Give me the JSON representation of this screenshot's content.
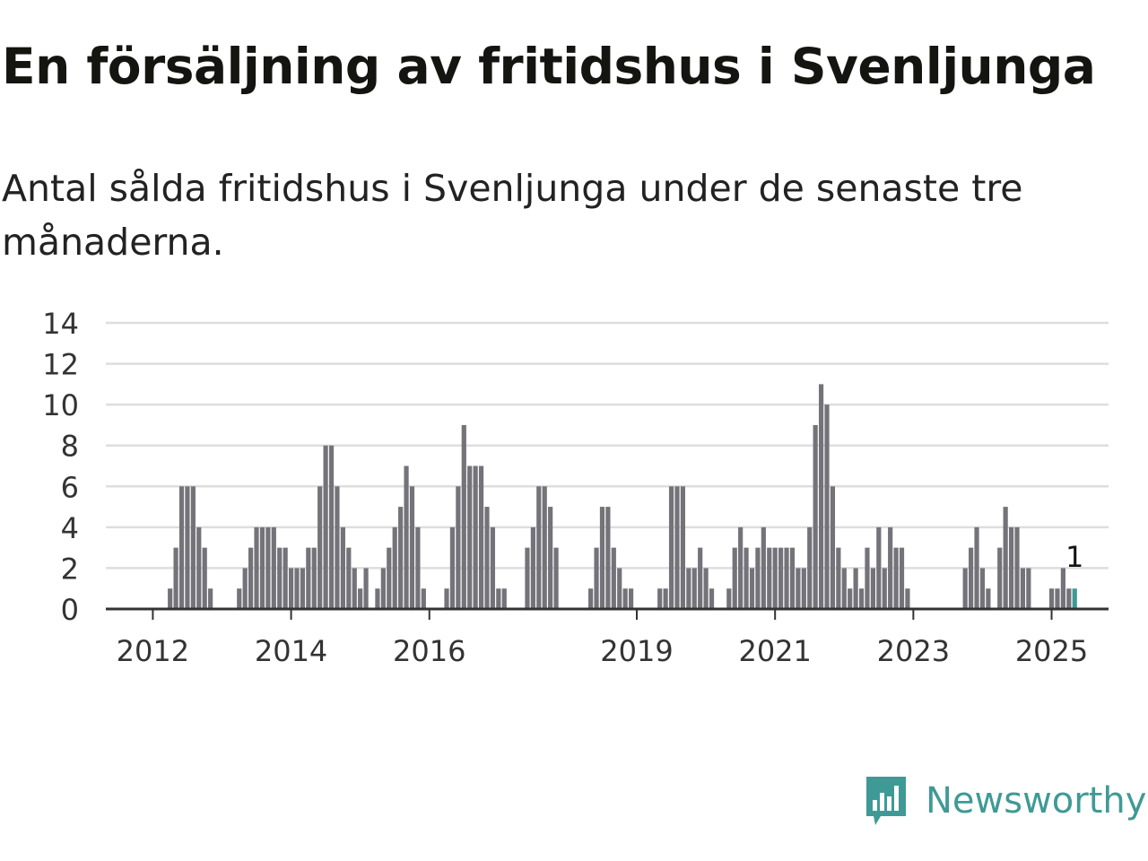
{
  "title": "En försäljning av fritidshus i Svenljunga",
  "subtitle": "Antal sålda fritidshus i Svenljunga under de senaste tre månaderna.",
  "brand": {
    "name": "Newsworthy",
    "icon": "newsworthy-logo-icon",
    "color": "#3f9a95"
  },
  "chart_data": {
    "type": "bar",
    "title": "En försäljning av fritidshus i Svenljunga",
    "xlabel": "",
    "ylabel": "",
    "ylim": [
      0,
      14
    ],
    "yticks": [
      "0",
      "2",
      "4",
      "6",
      "8",
      "10",
      "12",
      "14"
    ],
    "xticks": [
      {
        "label": "2012",
        "month": "2012-01"
      },
      {
        "label": "2014",
        "month": "2014-01"
      },
      {
        "label": "2016",
        "month": "2016-01"
      },
      {
        "label": "2019",
        "month": "2019-01"
      },
      {
        "label": "2021",
        "month": "2021-01"
      },
      {
        "label": "2023",
        "month": "2023-01"
      },
      {
        "label": "2025",
        "month": "2025-01"
      }
    ],
    "grid": true,
    "bar_color": "#74737a",
    "highlight_color": "#3f9a95",
    "highlight_label": "1",
    "start_month": "2011-05",
    "values": [
      0,
      0,
      0,
      0,
      0,
      0,
      0,
      0,
      0,
      0,
      0,
      1,
      3,
      6,
      6,
      6,
      4,
      3,
      1,
      0,
      0,
      0,
      0,
      1,
      2,
      3,
      4,
      4,
      4,
      4,
      3,
      3,
      2,
      2,
      2,
      3,
      3,
      6,
      8,
      8,
      6,
      4,
      3,
      2,
      1,
      2,
      0,
      1,
      2,
      3,
      4,
      5,
      7,
      6,
      4,
      1,
      0,
      0,
      0,
      1,
      4,
      6,
      9,
      7,
      7,
      7,
      5,
      4,
      1,
      1,
      0,
      0,
      0,
      3,
      4,
      6,
      6,
      5,
      3,
      0,
      0,
      0,
      0,
      0,
      1,
      3,
      5,
      5,
      3,
      2,
      1,
      1,
      0,
      0,
      0,
      0,
      1,
      1,
      6,
      6,
      6,
      2,
      2,
      3,
      2,
      1,
      0,
      0,
      1,
      3,
      4,
      3,
      2,
      3,
      4,
      3,
      3,
      3,
      3,
      3,
      2,
      2,
      4,
      9,
      11,
      10,
      6,
      3,
      2,
      1,
      2,
      1,
      3,
      2,
      4,
      2,
      4,
      3,
      3,
      1,
      0,
      0,
      0,
      0,
      0,
      0,
      0,
      0,
      0,
      2,
      3,
      4,
      2,
      1,
      0,
      3,
      5,
      4,
      4,
      2,
      2,
      0,
      0,
      0,
      1,
      1,
      2,
      1,
      1
    ]
  }
}
